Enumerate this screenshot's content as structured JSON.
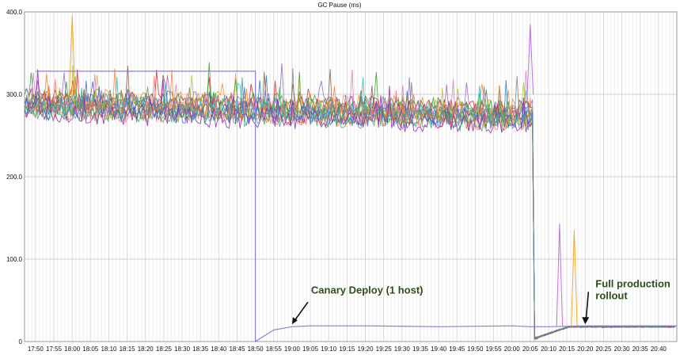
{
  "chart_data": {
    "type": "line",
    "title": "GC Pause (ms)",
    "xlabel": "",
    "ylabel": "",
    "ylim": [
      0,
      400
    ],
    "y_ticks": [
      "0",
      "100.0",
      "200.0",
      "300.0",
      "400.0"
    ],
    "x_ticks": [
      "17:50",
      "17:55",
      "18:00",
      "18:05",
      "18:10",
      "18:15",
      "18:20",
      "18:25",
      "18:30",
      "18:35",
      "18:40",
      "18:45",
      "18:50",
      "18:55",
      "19:00",
      "19:05",
      "19:10",
      "19:15",
      "19:20",
      "19:25",
      "19:30",
      "19:35",
      "19:40",
      "19:45",
      "19:50",
      "19:55",
      "20:00",
      "20:05",
      "20:10",
      "20:15",
      "20:20",
      "20:25",
      "20:30",
      "20:35",
      "20:40"
    ],
    "grid": true,
    "legend": "none",
    "series_note": "About 16 host series: ~280-310 ms until ~20:05, then ~15-20 ms. One canary host drops to ~15-20 ms at 18:50.",
    "canary_series": {
      "color": "#8a7fd6",
      "x": [
        "17:50",
        "18:50",
        "18:50",
        "18:55",
        "19:00",
        "19:05",
        "19:20",
        "19:40",
        "20:00",
        "20:05",
        "20:10",
        "20:20",
        "20:45"
      ],
      "y": [
        328,
        328,
        0,
        14,
        18,
        19,
        19,
        18,
        19,
        18,
        18,
        19,
        19
      ]
    },
    "spikes": [
      {
        "x": "18:00",
        "y": 395,
        "color": "#f0a830"
      },
      {
        "x": "20:05",
        "y": 385,
        "color": "#c070e0"
      },
      {
        "x": "20:13",
        "y": 143,
        "color": "#c070e0"
      },
      {
        "x": "20:17",
        "y": 135,
        "color": "#f0a830"
      }
    ],
    "annotations": [
      {
        "text": "Canary Deploy (1 host)",
        "x": "19:00",
        "y": 18
      },
      {
        "text": "Full production rollout",
        "lines": [
          "Full production",
          "rollout"
        ],
        "x": "20:20",
        "y": 18
      }
    ]
  },
  "colors": {
    "series": [
      "#ff8c1a",
      "#d62728",
      "#2ca02c",
      "#9467bd",
      "#1f77b4",
      "#e377c2",
      "#8c564b",
      "#17becf",
      "#bcbd22",
      "#7f7f7f",
      "#ff6f61",
      "#3cb44b",
      "#4363d8",
      "#f58231",
      "#911eb4",
      "#469990"
    ],
    "annotation": "#2f4d1e"
  }
}
